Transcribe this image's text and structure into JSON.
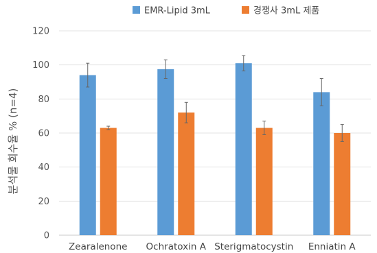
{
  "chart_data": {
    "type": "bar",
    "title": "",
    "xlabel": "",
    "ylabel": "분석물 회수율 % (n=4)",
    "ylim": [
      0,
      120
    ],
    "yticks": [
      0,
      20,
      40,
      60,
      80,
      100,
      120
    ],
    "grid": true,
    "legend_position": "top",
    "categories": [
      "Zearalenone",
      "Ochratoxin A",
      "Sterigmatocystin",
      "Enniatin A"
    ],
    "series": [
      {
        "name": "EMR-Lipid 3mL",
        "color": "#5b9bd5",
        "values": [
          94,
          97.5,
          101,
          84
        ],
        "errors": [
          7,
          5.5,
          4.5,
          8
        ]
      },
      {
        "name": "경쟁사 3mL 제품",
        "color": "#ed7d31",
        "values": [
          63,
          72,
          63,
          60
        ],
        "errors": [
          1,
          6,
          4,
          5
        ]
      }
    ]
  }
}
